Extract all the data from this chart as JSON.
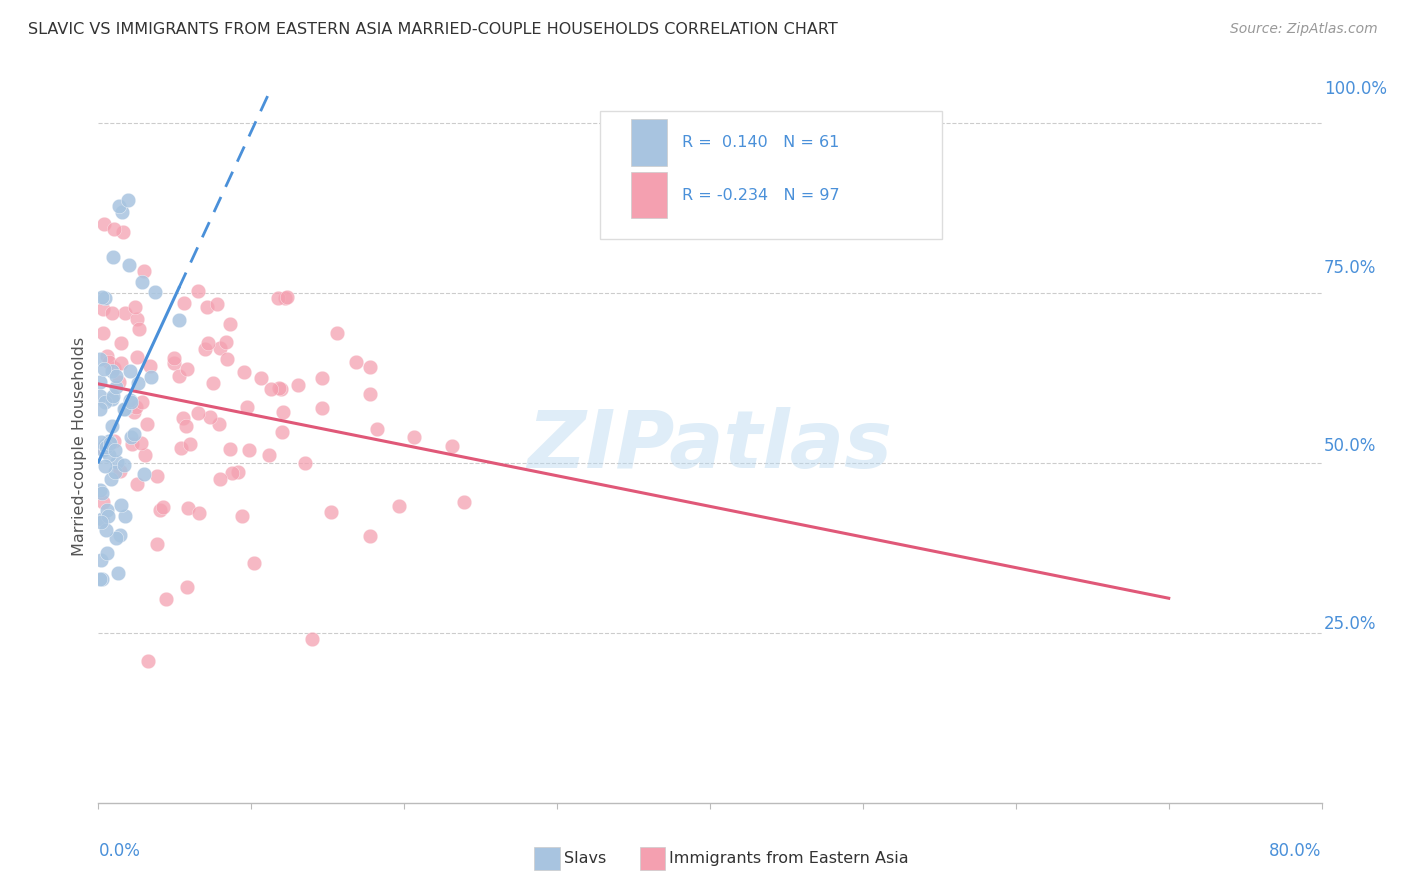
{
  "title": "SLAVIC VS IMMIGRANTS FROM EASTERN ASIA MARRIED-COUPLE HOUSEHOLDS CORRELATION CHART",
  "source": "Source: ZipAtlas.com",
  "ylabel": "Married-couple Households",
  "xlim": [
    0.0,
    0.8
  ],
  "ylim": [
    0.0,
    1.05
  ],
  "slavs_R": 0.14,
  "slavs_N": 61,
  "immigrants_R": -0.234,
  "immigrants_N": 97,
  "slavs_color": "#a8c4e0",
  "immigrants_color": "#f4a0b0",
  "trend_slavs_color": "#4a90d9",
  "trend_immigrants_color": "#e05878",
  "legend_label_slavs": "Slavs",
  "legend_label_immigrants": "Immigrants from Eastern Asia",
  "watermark": "ZIPatlas",
  "background_color": "#ffffff"
}
